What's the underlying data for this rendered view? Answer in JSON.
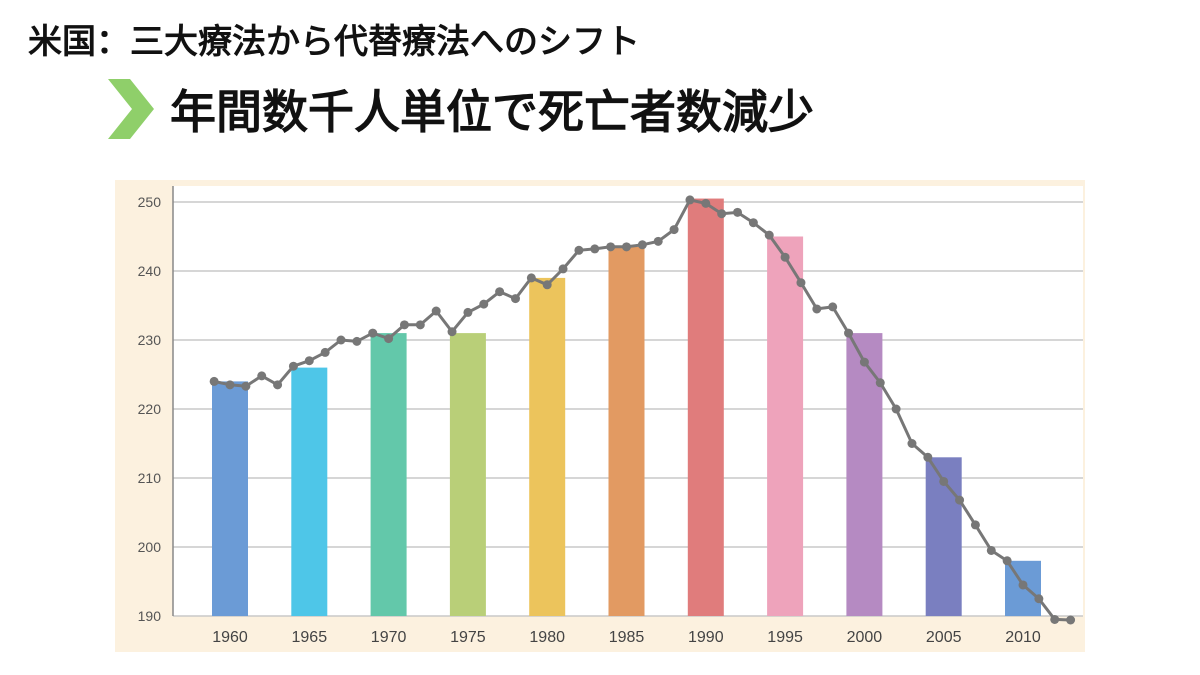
{
  "header": {
    "title": "米国：三大療法から代替療法へのシフト",
    "subtitle": "年間数千人単位で死亡者数減少"
  },
  "colors": {
    "background_panel": "#fcf1df",
    "gridline": "#c9c9c9",
    "line": "#777777",
    "chevron": "#8fcf6a"
  },
  "chart_data": {
    "type": "bar",
    "title": "",
    "xlabel": "",
    "ylabel": "",
    "ylim": [
      190,
      250
    ],
    "yticks": [
      190,
      200,
      210,
      220,
      230,
      240,
      250
    ],
    "grid": true,
    "categories": [
      "1960",
      "1965",
      "1970",
      "1975",
      "1980",
      "1985",
      "1990",
      "1995",
      "2000",
      "2005",
      "2010"
    ],
    "values": [
      224,
      226,
      231,
      231,
      239,
      243.5,
      250.5,
      245,
      231,
      213,
      198
    ],
    "bar_colors": [
      "#6b9bd6",
      "#4ec6e8",
      "#63c8aa",
      "#b9cf78",
      "#ecc45c",
      "#e29a62",
      "#e07c7c",
      "#eea3bb",
      "#b58ac2",
      "#7a7fc0",
      "#6b9bd6"
    ],
    "series": [
      {
        "name": "",
        "type": "line",
        "x": [
          1959,
          1960,
          1961,
          1962,
          1963,
          1964,
          1965,
          1966,
          1967,
          1968,
          1969,
          1970,
          1971,
          1972,
          1973,
          1974,
          1975,
          1976,
          1977,
          1978,
          1979,
          1980,
          1981,
          1982,
          1983,
          1984,
          1985,
          1986,
          1987,
          1988,
          1989,
          1990,
          1991,
          1992,
          1993,
          1994,
          1995,
          1996,
          1997,
          1998,
          1999,
          2000,
          2001,
          2002,
          2003,
          2004,
          2005,
          2006,
          2007,
          2008,
          2009,
          2010,
          2011,
          2012,
          2013
        ],
        "y": [
          224,
          223.5,
          223.3,
          224.8,
          223.5,
          226.2,
          227,
          228.2,
          230,
          229.8,
          231,
          230.2,
          232.2,
          232.2,
          234.2,
          231.2,
          234,
          235.2,
          237,
          236,
          239,
          238,
          240.3,
          243,
          243.2,
          243.5,
          243.5,
          243.8,
          244.3,
          246,
          250.3,
          249.8,
          248.3,
          248.5,
          247,
          245.2,
          242,
          238.3,
          234.5,
          234.8,
          231,
          226.8,
          223.8,
          220,
          215,
          213,
          209.5,
          206.8,
          203.2,
          199.5,
          198,
          194.5,
          192.5,
          189.5,
          188
        ]
      }
    ]
  }
}
